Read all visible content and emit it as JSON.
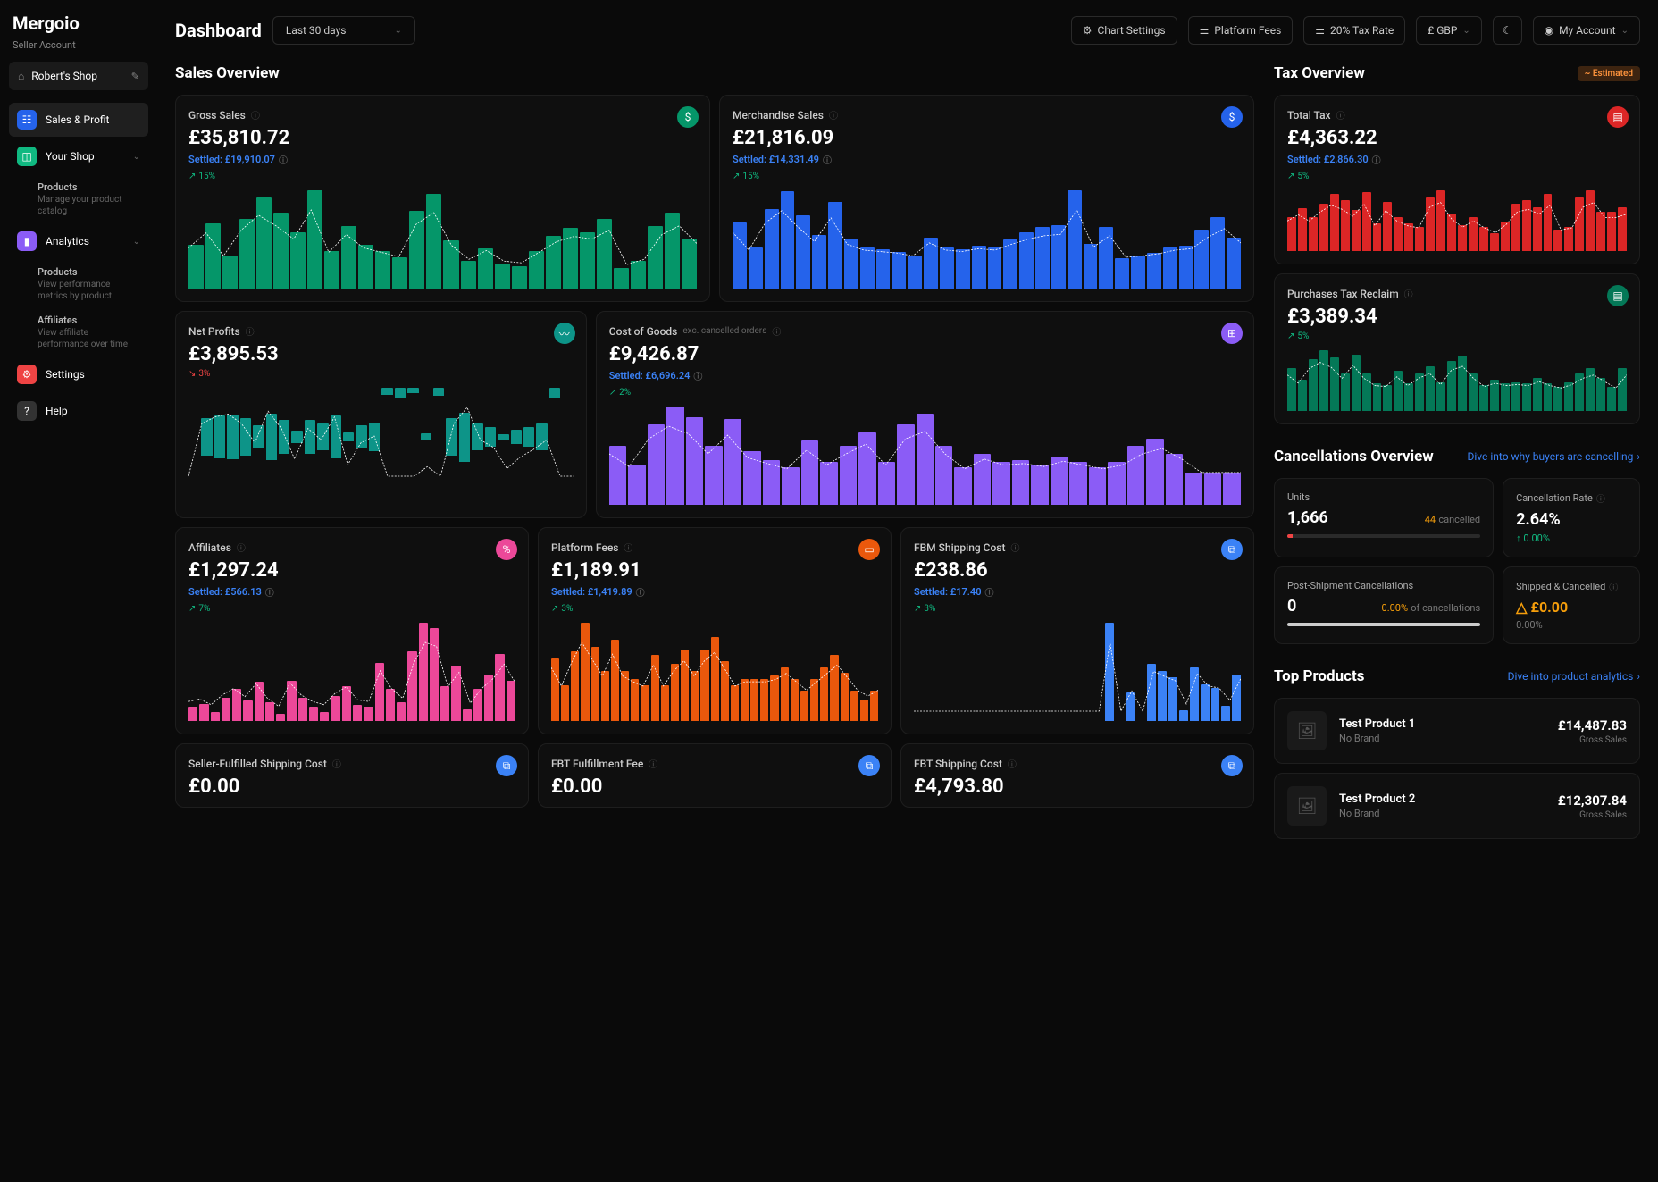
{
  "brand": "Mergoio",
  "subtitle": "Seller Account",
  "shop_name": "Robert's Shop",
  "nav": {
    "sales_profit": "Sales & Profit",
    "your_shop": "Your Shop",
    "products": "Products",
    "products_desc": "Manage your product catalog",
    "analytics": "Analytics",
    "products2": "Products",
    "products2_desc": "View performance metrics by product",
    "affiliates": "Affiliates",
    "affiliates_desc": "View affiliate performance over time",
    "settings": "Settings",
    "help": "Help"
  },
  "header": {
    "title": "Dashboard",
    "date_range": "Last 30 days",
    "chart_settings": "Chart Settings",
    "platform_fees": "Platform Fees",
    "tax_rate": "20% Tax Rate",
    "currency": "£ GBP",
    "my_account": "My Account"
  },
  "sections": {
    "sales_overview": "Sales Overview",
    "tax_overview": "Tax Overview",
    "estimated": "~ Estimated",
    "cancellations": "Cancellations Overview",
    "cancel_link": "Dive into why buyers are cancelling",
    "top_products": "Top Products",
    "prod_link": "Dive into product analytics"
  },
  "cards": {
    "gross_sales": {
      "title": "Gross Sales",
      "value": "£35,810.72",
      "settled": "Settled: £19,910.07",
      "trend": "15%",
      "color": "#059669",
      "bars": [
        35,
        52,
        26,
        55,
        72,
        60,
        45,
        78,
        30,
        50,
        35,
        30,
        25,
        62,
        75,
        38,
        22,
        32,
        20,
        18,
        30,
        42,
        48,
        45,
        55,
        16,
        22,
        50,
        60,
        40
      ]
    },
    "merch_sales": {
      "title": "Merchandise Sales",
      "value": "£21,816.09",
      "settled": "Settled: £14,331.49",
      "trend": "15%",
      "color": "#2563eb",
      "bars": [
        65,
        40,
        78,
        95,
        72,
        52,
        85,
        48,
        40,
        38,
        36,
        32,
        50,
        40,
        38,
        42,
        40,
        48,
        55,
        60,
        62,
        96,
        44,
        60,
        30,
        32,
        35,
        40,
        42,
        58,
        70,
        50
      ]
    },
    "net_profits": {
      "title": "Net Profits",
      "value": "£3,895.53",
      "trend": "3%",
      "trend_dir": "down",
      "color": "#0d9488",
      "bars": [
        0,
        55,
        62,
        65,
        55,
        35,
        68,
        50,
        18,
        50,
        38,
        62,
        12,
        35,
        42,
        -10,
        -16,
        -8,
        10,
        -12,
        55,
        72,
        38,
        30,
        8,
        20,
        28,
        38,
        -15,
        0
      ]
    },
    "cogs": {
      "title": "Cost of Goods",
      "sub": "exc. cancelled orders",
      "value": "£9,426.87",
      "settled": "Settled: £6,696.24",
      "trend": "2%",
      "color": "#8b5cf6",
      "bars": [
        55,
        38,
        75,
        92,
        82,
        55,
        80,
        50,
        42,
        35,
        60,
        40,
        55,
        68,
        40,
        75,
        85,
        55,
        35,
        48,
        40,
        42,
        38,
        45,
        40,
        35,
        40,
        55,
        62,
        48,
        30,
        30,
        30
      ]
    },
    "affiliates": {
      "title": "Affiliates",
      "value": "£1,297.24",
      "settled": "Settled: £566.13",
      "trend": "7%",
      "color": "#ec4899",
      "bars": [
        12,
        15,
        8,
        20,
        28,
        18,
        34,
        16,
        6,
        35,
        20,
        12,
        8,
        22,
        30,
        14,
        12,
        50,
        28,
        16,
        60,
        85,
        80,
        30,
        48,
        10,
        28,
        40,
        58,
        35
      ]
    },
    "platform_fees": {
      "title": "Platform Fees",
      "value": "£1,189.91",
      "settled": "Settled: £1,419.89",
      "trend": "3%",
      "color": "#ea580c",
      "bars": [
        52,
        30,
        58,
        82,
        62,
        42,
        68,
        42,
        35,
        30,
        55,
        30,
        48,
        60,
        42,
        60,
        70,
        50,
        30,
        35,
        35,
        35,
        38,
        45,
        35,
        25,
        35,
        45,
        55,
        40,
        25,
        18,
        25
      ]
    },
    "fbm_ship": {
      "title": "FBM Shipping Cost",
      "value": "£238.86",
      "settled": "Settled: £17.40",
      "trend": "3%",
      "color": "#3b82f6",
      "bars": [
        0,
        0,
        0,
        0,
        0,
        0,
        0,
        0,
        0,
        0,
        0,
        0,
        0,
        0,
        0,
        0,
        0,
        0,
        95,
        0,
        28,
        0,
        55,
        48,
        42,
        10,
        52,
        35,
        32,
        15,
        45
      ]
    },
    "sf_ship": {
      "title": "Seller-Fulfilled Shipping Cost"
    },
    "fbt_fulfill": {
      "title": "FBT Fulfillment Fee",
      "value": "£0.00"
    },
    "fbt_ship": {
      "title": "FBT Shipping Cost",
      "value": "£4,793.80"
    },
    "total_tax": {
      "title": "Total Tax",
      "value": "£4,363.22",
      "settled": "Settled: £2,866.30",
      "trend": "5%",
      "color": "#dc2626",
      "bars": [
        35,
        44,
        35,
        48,
        58,
        52,
        42,
        60,
        28,
        50,
        35,
        28,
        25,
        55,
        62,
        38,
        26,
        35,
        25,
        18,
        30,
        48,
        52,
        45,
        58,
        22,
        25,
        55,
        62,
        40,
        40,
        45
      ]
    },
    "tax_reclaim": {
      "title": "Purchases Tax Reclaim",
      "value": "£3,389.34",
      "trend": "5%",
      "color": "#047857",
      "bars": [
        62,
        45,
        75,
        88,
        78,
        55,
        82,
        55,
        40,
        38,
        58,
        40,
        55,
        65,
        42,
        72,
        80,
        55,
        38,
        45,
        40,
        42,
        40,
        48,
        40,
        35,
        42,
        55,
        62,
        48,
        35,
        62
      ]
    }
  },
  "cancel": {
    "units_label": "Units",
    "units": "1,666",
    "units_side": "44",
    "units_side_lbl": "cancelled",
    "units_pct": 3,
    "rate_label": "Cancellation Rate",
    "rate": "2.64%",
    "rate_change": "↑ 0.00%",
    "post_label": "Post-Shipment Cancellations",
    "post": "0",
    "post_side": "0.00%",
    "post_side_lbl": "of cancellations",
    "post_pct": 100,
    "shipcan_label": "Shipped & Cancelled",
    "shipcan": "£0.00",
    "shipcan_change": "0.00%"
  },
  "products": [
    {
      "name": "Test Product 1",
      "brand": "No Brand",
      "value": "£14,487.83",
      "label": "Gross Sales"
    },
    {
      "name": "Test Product 2",
      "brand": "No Brand",
      "value": "£12,307.84",
      "label": "Gross Sales"
    }
  ]
}
